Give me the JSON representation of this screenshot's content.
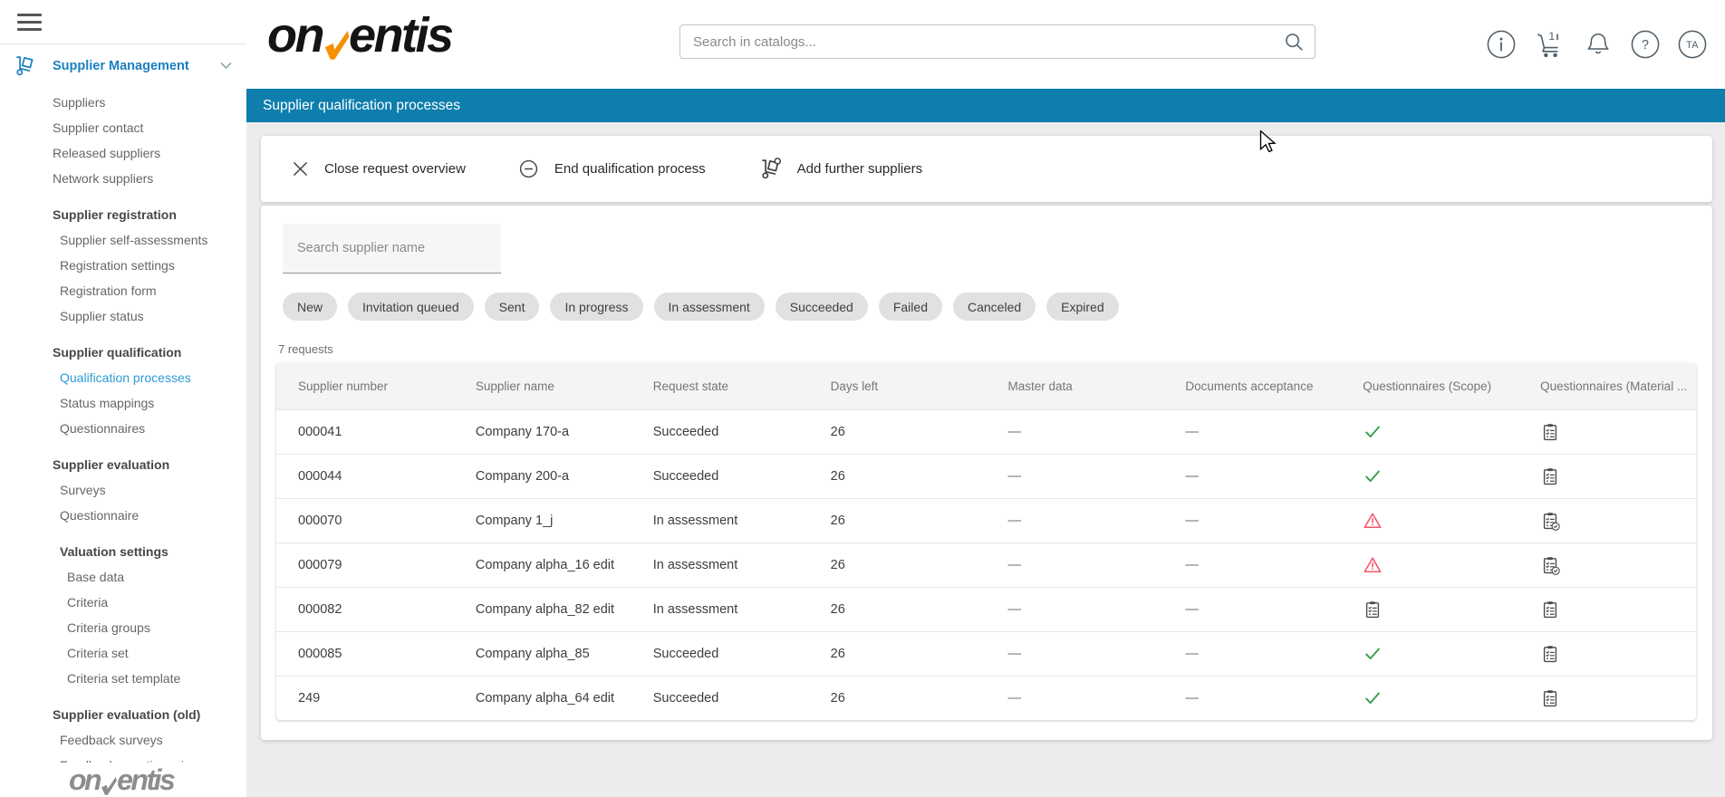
{
  "page_title": "Supplier qualification processes",
  "logo": {
    "prefix": "on",
    "suffix": "entis"
  },
  "header": {
    "search_placeholder": "Search in catalogs...",
    "cart_badge": "1",
    "avatar_initials": "TA"
  },
  "sidebar": {
    "root_label": "Supplier Management",
    "active_item": "Qualification processes",
    "groups": [
      {
        "items": [
          "Suppliers",
          "Supplier contact",
          "Released suppliers",
          "Network suppliers"
        ]
      },
      {
        "header": "Supplier registration",
        "items": [
          "Supplier self-assessments",
          "Registration settings",
          "Registration form",
          "Supplier status"
        ]
      },
      {
        "header": "Supplier qualification",
        "items": [
          "Qualification processes",
          "Status mappings",
          "Questionnaires"
        ]
      },
      {
        "header": "Supplier evaluation",
        "items": [
          "Surveys",
          "Questionnaire"
        ]
      },
      {
        "header": "Valuation settings",
        "indent": true,
        "items": [
          "Base data",
          "Criteria",
          "Criteria groups",
          "Criteria set",
          "Criteria set template"
        ]
      },
      {
        "header": "Supplier evaluation (old)",
        "items": [
          "Feedback surveys",
          "Feedback questionnaires"
        ]
      }
    ],
    "footer_logo": {
      "prefix": "on",
      "suffix": "entis"
    }
  },
  "toolbar": {
    "actions": [
      {
        "label": "Close request overview",
        "icon": "close-icon"
      },
      {
        "label": "End qualification process",
        "icon": "minus-circle-icon"
      },
      {
        "label": "Add further suppliers",
        "icon": "hand-truck-add-icon"
      }
    ]
  },
  "filters": {
    "search_placeholder": "Search supplier name",
    "chips": [
      "New",
      "Invitation queued",
      "Sent",
      "In progress",
      "In assessment",
      "Succeeded",
      "Failed",
      "Canceled",
      "Expired"
    ]
  },
  "requests_count": "7 requests",
  "table": {
    "columns": [
      "Supplier number",
      "Supplier name",
      "Request state",
      "Days left",
      "Master data",
      "Documents acceptance",
      "Questionnaires (Scope)",
      "Questionnaires (Material ..."
    ],
    "rows": [
      {
        "supplier_number": "000041",
        "supplier_name": "Company 170-a",
        "request_state": "Succeeded",
        "days_left": "26",
        "master_data": "—",
        "documents_acceptance": "—",
        "questionnaires_scope": "check",
        "questionnaires_material": "clipboard"
      },
      {
        "supplier_number": "000044",
        "supplier_name": "Company 200-a",
        "request_state": "Succeeded",
        "days_left": "26",
        "master_data": "—",
        "documents_acceptance": "—",
        "questionnaires_scope": "check",
        "questionnaires_material": "clipboard"
      },
      {
        "supplier_number": "000070",
        "supplier_name": "Company 1_j",
        "request_state": "In assessment",
        "days_left": "26",
        "master_data": "—",
        "documents_acceptance": "—",
        "questionnaires_scope": "warning",
        "questionnaires_material": "clipboard-check"
      },
      {
        "supplier_number": "000079",
        "supplier_name": "Company alpha_16 edit",
        "request_state": "In assessment",
        "days_left": "26",
        "master_data": "—",
        "documents_acceptance": "—",
        "questionnaires_scope": "warning",
        "questionnaires_material": "clipboard-check"
      },
      {
        "supplier_number": "000082",
        "supplier_name": "Company alpha_82 edit",
        "request_state": "In assessment",
        "days_left": "26",
        "master_data": "—",
        "documents_acceptance": "—",
        "questionnaires_scope": "clipboard",
        "questionnaires_material": "clipboard"
      },
      {
        "supplier_number": "000085",
        "supplier_name": "Company alpha_85",
        "request_state": "Succeeded",
        "days_left": "26",
        "master_data": "—",
        "documents_acceptance": "—",
        "questionnaires_scope": "check",
        "questionnaires_material": "clipboard"
      },
      {
        "supplier_number": "249",
        "supplier_name": "Company alpha_64 edit",
        "request_state": "Succeeded",
        "days_left": "26",
        "master_data": "—",
        "documents_acceptance": "—",
        "questionnaires_scope": "check",
        "questionnaires_material": "clipboard"
      }
    ]
  },
  "colors": {
    "title_bar": "#0d7ead",
    "link_blue": "#2e9bd6",
    "brand_orange": "#f59100",
    "success_green": "#2f9e44",
    "warning_red": "#f25767"
  }
}
